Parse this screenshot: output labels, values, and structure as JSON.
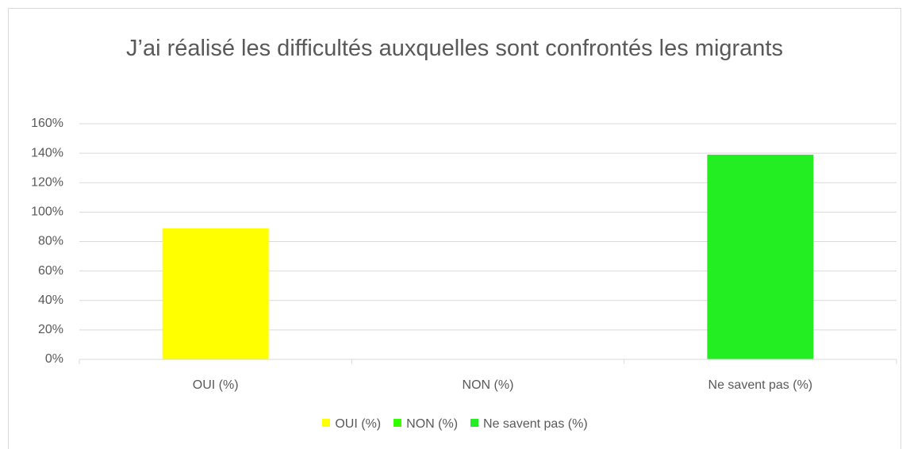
{
  "chart_data": {
    "type": "bar",
    "title": "J’ai réalisé les difficultés auxquelles sont confrontés les migrants",
    "categories": [
      "OUI (%)",
      "NON (%)",
      "Ne savent pas (%)"
    ],
    "values": [
      89,
      0,
      139
    ],
    "colors": [
      "#ffff00",
      "#33ff00",
      "#22ee22"
    ],
    "ylim": [
      0,
      160
    ],
    "yticks": [
      {
        "value": 0,
        "label": "0%"
      },
      {
        "value": 20,
        "label": "20%"
      },
      {
        "value": 40,
        "label": "40%"
      },
      {
        "value": 60,
        "label": "60%"
      },
      {
        "value": 80,
        "label": "80%"
      },
      {
        "value": 100,
        "label": "100%"
      },
      {
        "value": 120,
        "label": "120%"
      },
      {
        "value": 140,
        "label": "140%"
      },
      {
        "value": 160,
        "label": "160%"
      }
    ],
    "grid": true,
    "legend": "bottom"
  }
}
